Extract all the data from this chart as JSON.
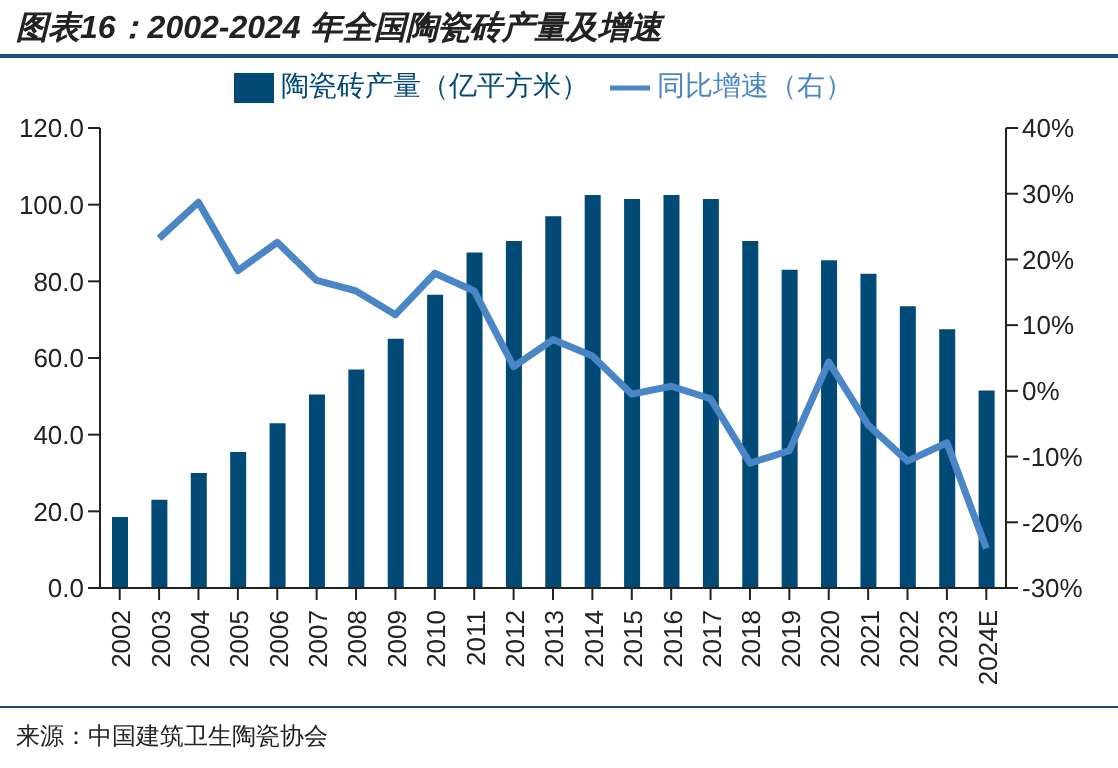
{
  "chart_data": {
    "type": "bar",
    "title": "图表16：2002-2024 年全国陶瓷砖产量及增速",
    "categories": [
      "2002",
      "2003",
      "2004",
      "2005",
      "2006",
      "2007",
      "2008",
      "2009",
      "2010",
      "2011",
      "2012",
      "2013",
      "2014",
      "2015",
      "2016",
      "2017",
      "2018",
      "2019",
      "2020",
      "2021",
      "2022",
      "2023",
      "2024E"
    ],
    "series": [
      {
        "name": "陶瓷砖产量（亿平方米）",
        "color": "#004a75",
        "values": [
          18.5,
          23,
          30,
          35.5,
          43,
          50.5,
          57,
          65,
          76.5,
          87.5,
          90.5,
          97,
          102.5,
          101.5,
          102.5,
          101.5,
          90.5,
          83,
          85.5,
          82,
          73.5,
          67.5,
          51.5
        ]
      },
      {
        "name": "同比增速（右）",
        "type": "line",
        "axis": "y2",
        "color": "#4a86c5",
        "values": [
          null,
          23.2,
          28.7,
          18.3,
          22.6,
          16.8,
          15.2,
          11.6,
          17.9,
          15.2,
          3.7,
          7.8,
          5.3,
          -0.5,
          0.7,
          -1.2,
          -11,
          -9.1,
          4.4,
          -5.2,
          -10.7,
          -7.9,
          -24
        ]
      }
    ],
    "ylim": [
      0,
      120
    ],
    "yticks": [
      {
        "value": 0,
        "label": "0.0"
      },
      {
        "value": 20,
        "label": "20.0"
      },
      {
        "value": 40,
        "label": "40.0"
      },
      {
        "value": 60,
        "label": "60.0"
      },
      {
        "value": 80,
        "label": "80.0"
      },
      {
        "value": 100,
        "label": "100.0"
      },
      {
        "value": 120,
        "label": "120.0"
      }
    ],
    "y2lim": [
      -30,
      40
    ],
    "y2ticks": [
      {
        "value": -30,
        "label": "-30%"
      },
      {
        "value": -20,
        "label": "-20%"
      },
      {
        "value": -10,
        "label": "-10%"
      },
      {
        "value": 0,
        "label": "0%"
      },
      {
        "value": 10,
        "label": "10%"
      },
      {
        "value": 20,
        "label": "20%"
      },
      {
        "value": 30,
        "label": "30%"
      },
      {
        "value": 40,
        "label": "40%"
      }
    ],
    "grid": false,
    "legend": "top",
    "marker": "none",
    "annotations": [
      "来源：中国建筑卫生陶瓷协会"
    ]
  }
}
